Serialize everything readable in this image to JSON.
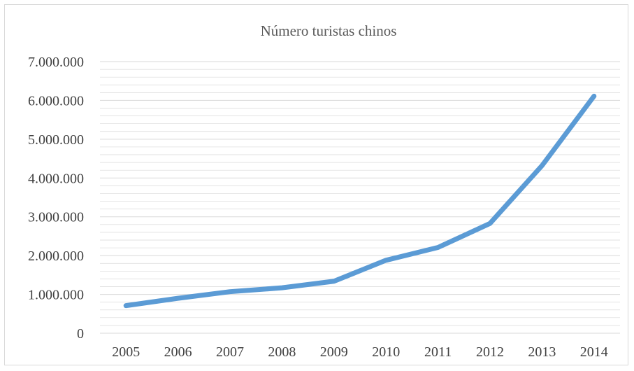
{
  "chart_data": {
    "type": "line",
    "title": "Número turistas chinos",
    "xlabel": "",
    "ylabel": "",
    "categories": [
      "2005",
      "2006",
      "2007",
      "2008",
      "2009",
      "2010",
      "2011",
      "2012",
      "2013",
      "2014"
    ],
    "series": [
      {
        "values": [
          710000,
          900000,
          1070000,
          1170000,
          1340000,
          1880000,
          2210000,
          2830000,
          4320000,
          6110000
        ]
      }
    ],
    "ylim": [
      0,
      7000000
    ],
    "y_ticks": [
      "0",
      "1.000.000",
      "2.000.000",
      "3.000.000",
      "4.000.000",
      "5.000.000",
      "6.000.000",
      "7.000.000"
    ],
    "grid": true,
    "minor_grid": true,
    "legend": "none",
    "line_color": "#5b9bd5",
    "grid_color": "#d9d9d9"
  }
}
